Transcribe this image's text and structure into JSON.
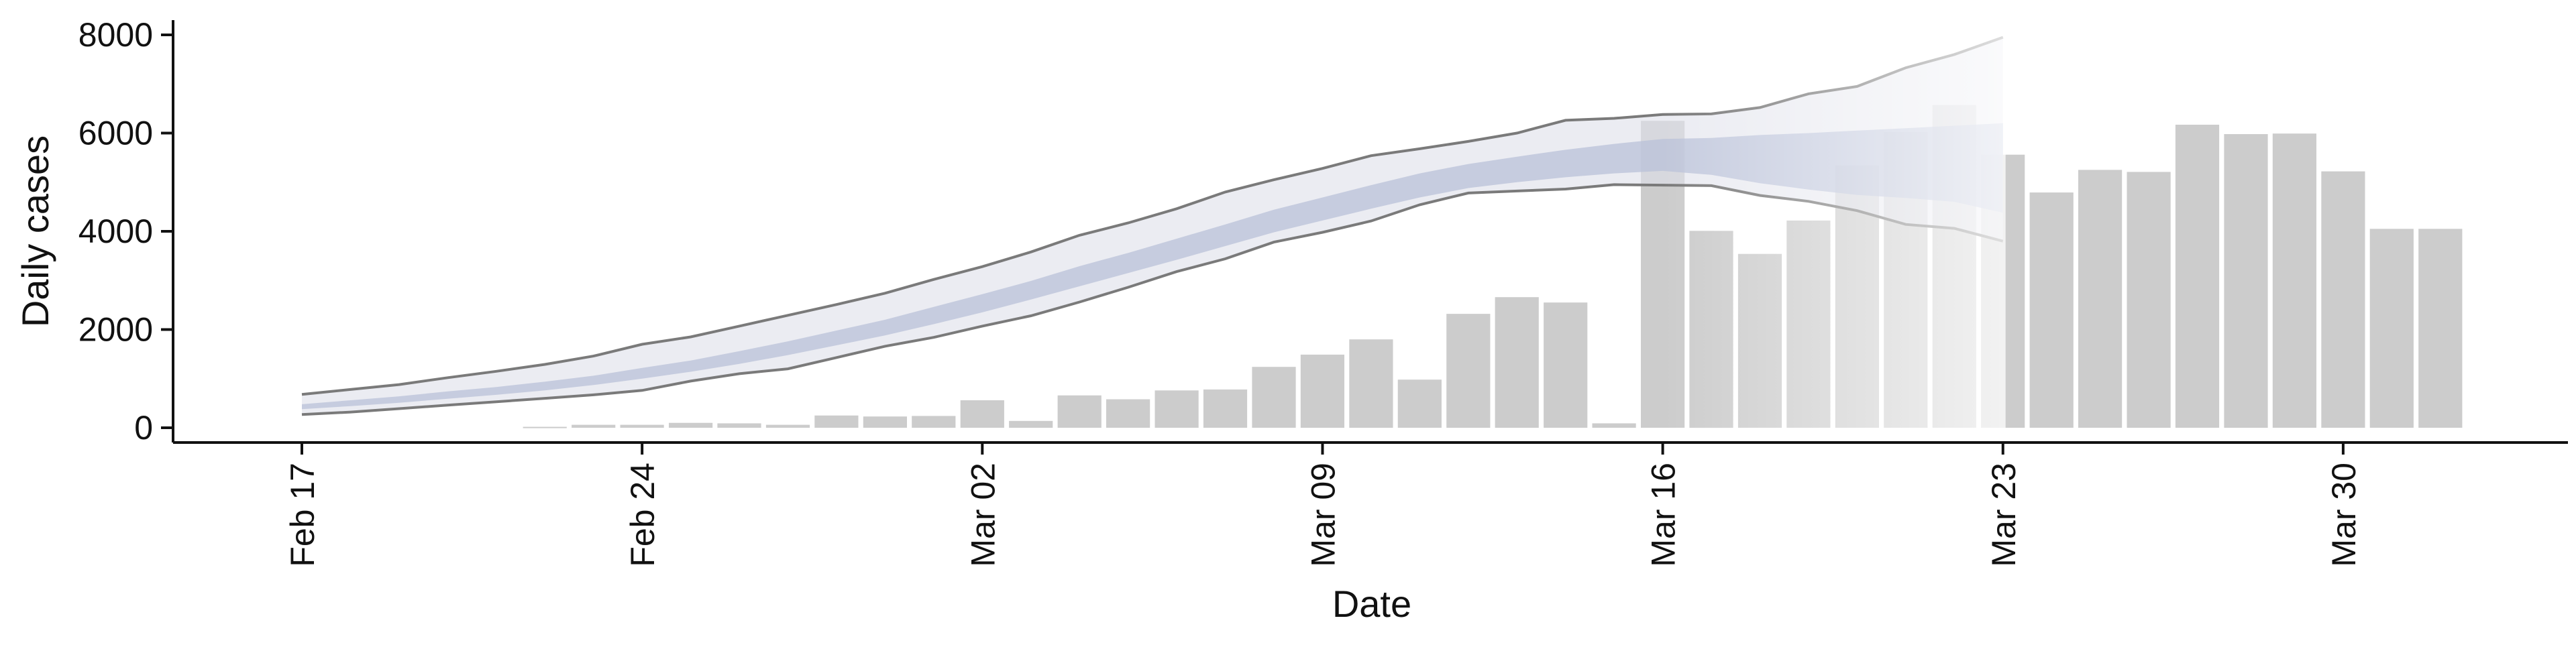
{
  "chart_data": {
    "type": "bar",
    "xlabel": "Date",
    "ylabel": "Daily cases",
    "ylim": [
      -300,
      8300
    ],
    "yticks": [
      0,
      2000,
      4000,
      6000,
      8000
    ],
    "x_start": "2020-02-17",
    "x_end": "2020-04-03",
    "xticks": [
      {
        "date": "2020-02-17",
        "label": "Feb 17"
      },
      {
        "date": "2020-02-24",
        "label": "Feb 24"
      },
      {
        "date": "2020-03-02",
        "label": "Mar 02"
      },
      {
        "date": "2020-03-09",
        "label": "Mar 09"
      },
      {
        "date": "2020-03-16",
        "label": "Mar 16"
      },
      {
        "date": "2020-03-23",
        "label": "Mar 23"
      },
      {
        "date": "2020-03-30",
        "label": "Mar 30"
      }
    ],
    "bars": {
      "dates": [
        "2020-02-22",
        "2020-02-23",
        "2020-02-24",
        "2020-02-25",
        "2020-02-26",
        "2020-02-27",
        "2020-02-28",
        "2020-02-29",
        "2020-03-01",
        "2020-03-02",
        "2020-03-03",
        "2020-03-04",
        "2020-03-05",
        "2020-03-06",
        "2020-03-07",
        "2020-03-08",
        "2020-03-09",
        "2020-03-10",
        "2020-03-11",
        "2020-03-12",
        "2020-03-13",
        "2020-03-14",
        "2020-03-15",
        "2020-03-16",
        "2020-03-17",
        "2020-03-18",
        "2020-03-19",
        "2020-03-20",
        "2020-03-21",
        "2020-03-22",
        "2020-03-23",
        "2020-03-24",
        "2020-03-25",
        "2020-03-26",
        "2020-03-27",
        "2020-03-28",
        "2020-03-29",
        "2020-03-30",
        "2020-03-31",
        "2020-04-01"
      ],
      "values": [
        20,
        60,
        60,
        100,
        90,
        60,
        250,
        230,
        240,
        560,
        140,
        660,
        580,
        760,
        780,
        1240,
        1490,
        1800,
        980,
        2320,
        2660,
        2550,
        90,
        6250,
        4010,
        3540,
        4220,
        5340,
        6020,
        6570,
        5560,
        4790,
        5250,
        5210,
        6170,
        5980,
        5990,
        5220,
        4050,
        4050
      ],
      "color": "#cccccc"
    },
    "band": {
      "dates": [
        "2020-02-17",
        "2020-02-18",
        "2020-02-19",
        "2020-02-20",
        "2020-02-21",
        "2020-02-22",
        "2020-02-23",
        "2020-02-24",
        "2020-02-25",
        "2020-02-26",
        "2020-02-27",
        "2020-02-28",
        "2020-02-29",
        "2020-03-01",
        "2020-03-02",
        "2020-03-03",
        "2020-03-04",
        "2020-03-05",
        "2020-03-06",
        "2020-03-07",
        "2020-03-08",
        "2020-03-09",
        "2020-03-10",
        "2020-03-11",
        "2020-03-12",
        "2020-03-13",
        "2020-03-14",
        "2020-03-15",
        "2020-03-16",
        "2020-03-17",
        "2020-03-18",
        "2020-03-19",
        "2020-03-20",
        "2020-03-21",
        "2020-03-22",
        "2020-03-23"
      ],
      "upper": [
        680,
        780,
        880,
        1020,
        1150,
        1290,
        1460,
        1700,
        1850,
        2070,
        2290,
        2510,
        2740,
        3020,
        3280,
        3580,
        3920,
        4170,
        4460,
        4800,
        5050,
        5280,
        5540,
        5680,
        5830,
        6000,
        6260,
        6300,
        6380,
        6390,
        6520,
        6800,
        6950,
        7330,
        7600,
        7950
      ],
      "lower": [
        270,
        320,
        390,
        460,
        530,
        600,
        670,
        760,
        950,
        1100,
        1200,
        1430,
        1660,
        1840,
        2070,
        2280,
        2560,
        2860,
        3180,
        3440,
        3780,
        3980,
        4210,
        4540,
        4780,
        4820,
        4860,
        4950,
        4940,
        4930,
        4730,
        4610,
        4420,
        4140,
        4060,
        3800
      ],
      "ci50_upper": [
        480,
        560,
        640,
        740,
        830,
        940,
        1060,
        1220,
        1370,
        1560,
        1760,
        1980,
        2200,
        2460,
        2720,
        2990,
        3290,
        3560,
        3850,
        4140,
        4440,
        4690,
        4940,
        5180,
        5370,
        5520,
        5660,
        5780,
        5880,
        5900,
        5960,
        6000,
        6050,
        6100,
        6150,
        6200
      ],
      "ci50_lower": [
        380,
        440,
        510,
        590,
        670,
        760,
        870,
        1000,
        1140,
        1300,
        1480,
        1680,
        1880,
        2110,
        2350,
        2610,
        2880,
        3150,
        3420,
        3700,
        3980,
        4220,
        4460,
        4690,
        4880,
        5000,
        5100,
        5180,
        5230,
        5150,
        4980,
        4850,
        4740,
        4680,
        4600,
        4380
      ],
      "forecast_from": "2020-03-16",
      "line_color": "#7a7a7a",
      "outer_fill": "#dde0ea",
      "inner_fill": "#b9c2d8"
    }
  }
}
